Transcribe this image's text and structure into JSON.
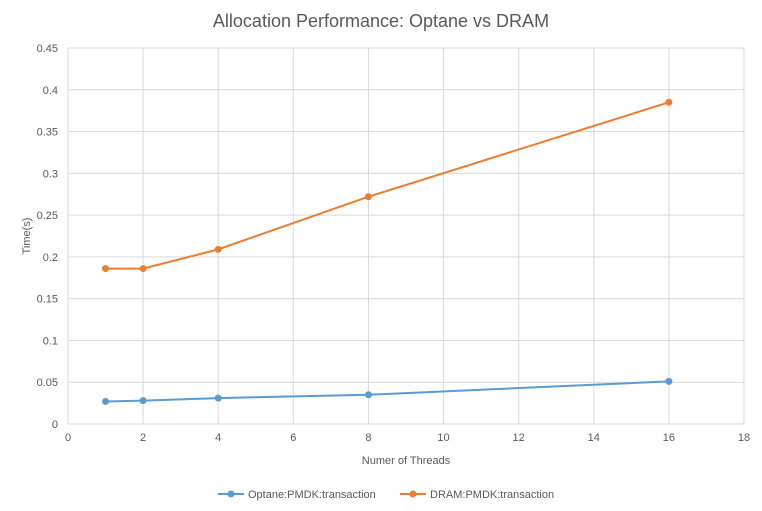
{
  "chart_data": {
    "type": "scatter",
    "title": "Allocation Performance: Optane vs DRAM",
    "xlabel": "Numer of Threads",
    "ylabel": "Time(s)",
    "xlim": [
      0,
      18
    ],
    "ylim": [
      0,
      0.45
    ],
    "xticks": [
      "0",
      "2",
      "4",
      "6",
      "8",
      "10",
      "12",
      "14",
      "16",
      "18"
    ],
    "yticks": [
      "0",
      "0.05",
      "0.1",
      "0.15",
      "0.2",
      "0.25",
      "0.3",
      "0.35",
      "0.4",
      "0.45"
    ],
    "grid": true,
    "legend_position": "bottom",
    "series": [
      {
        "name": "Optane:PMDK:transaction",
        "color": "#5b9bd5",
        "x": [
          1,
          2,
          4,
          8,
          16
        ],
        "y": [
          0.027,
          0.028,
          0.031,
          0.035,
          0.051
        ]
      },
      {
        "name": "DRAM:PMDK:transaction",
        "color": "#ed7d31",
        "x": [
          1,
          2,
          4,
          8,
          16
        ],
        "y": [
          0.186,
          0.186,
          0.209,
          0.272,
          0.385
        ]
      }
    ]
  }
}
